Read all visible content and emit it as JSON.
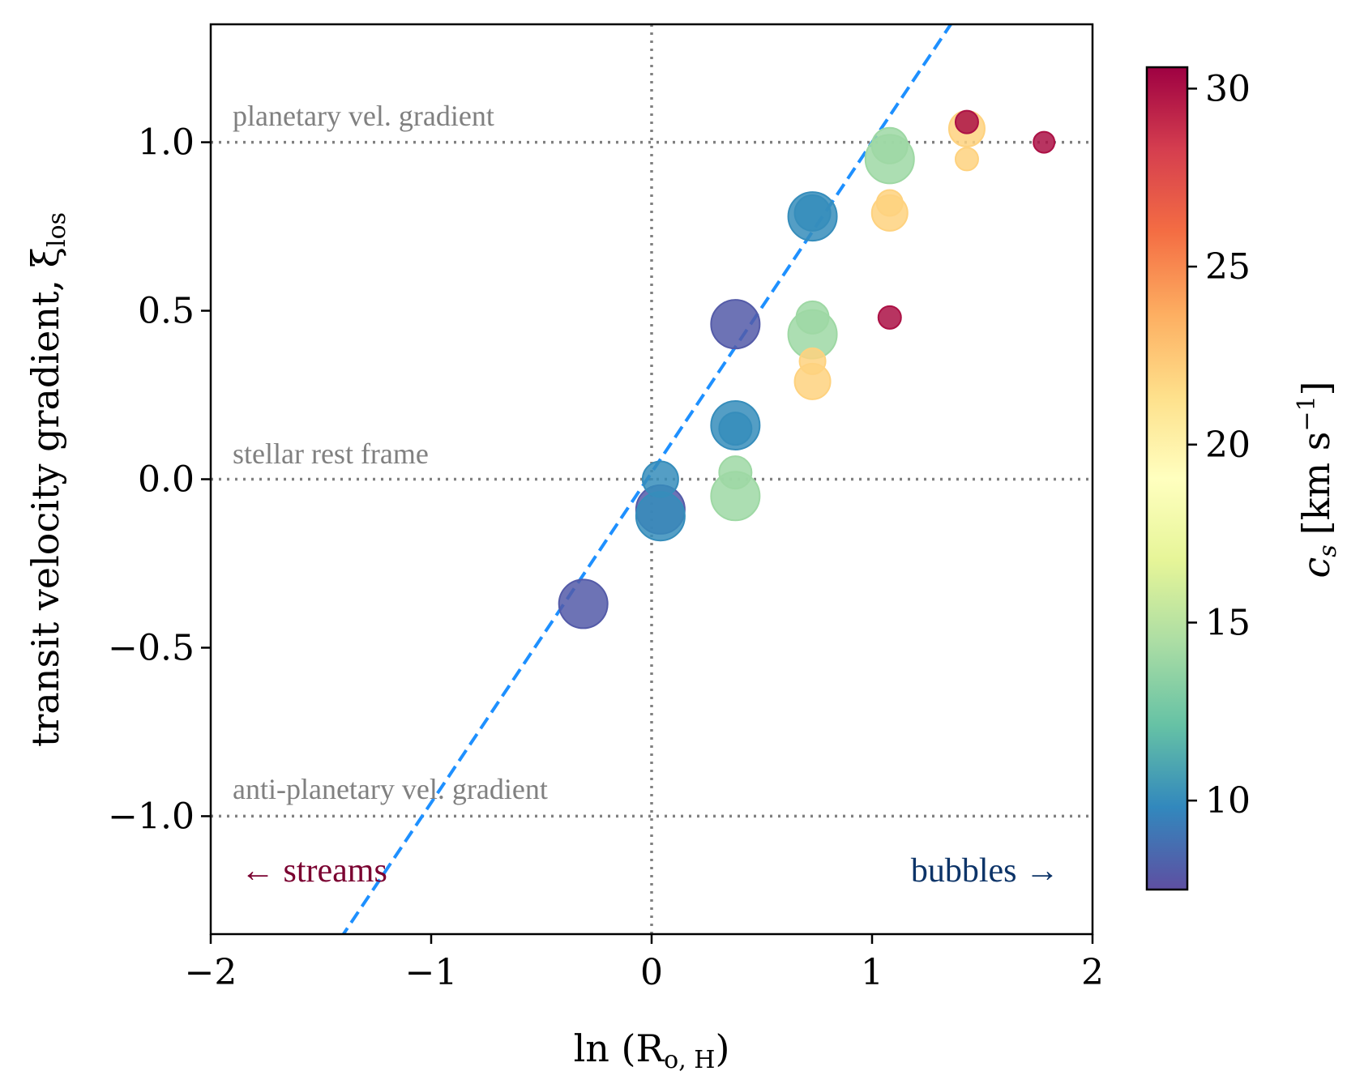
{
  "chart_data": {
    "type": "scatter",
    "xlabel": "ln (R",
    "xlabel_sub": "o, H",
    "xlabel_close": ")",
    "ylabel": "transit velocity gradient, ξ",
    "ylabel_sub": "los",
    "xlim": [
      -2,
      2
    ],
    "ylim": [
      -1.35,
      1.35
    ],
    "xticks": [
      -2,
      -1,
      0,
      1,
      2
    ],
    "xtick_labels": [
      "−2",
      "−1",
      "0",
      "1",
      "2"
    ],
    "yticks": [
      -1.0,
      -0.5,
      0.0,
      0.5,
      1.0
    ],
    "ytick_labels": [
      "−1.0",
      "−0.5",
      "0.0",
      "0.5",
      "1.0"
    ],
    "reference_lines": [
      {
        "y": 1.0,
        "label": "planetary vel. gradient"
      },
      {
        "y": 0.0,
        "label": "stellar rest frame"
      },
      {
        "y": -1.0,
        "label": "anti-planetary vel. gradient"
      }
    ],
    "vertical_reference": {
      "x": 0
    },
    "fit_line": {
      "slope": 0.98,
      "intercept": 0.02,
      "style": "dashed",
      "color": "#1e90ff"
    },
    "annotations": {
      "left": {
        "text": "← streams",
        "color": "#7a0030"
      },
      "right": {
        "text": "bubbles →",
        "color": "#0d3468"
      }
    },
    "colorbar": {
      "label": "c",
      "label_sub": "s",
      "label_units": "[km s",
      "label_exp": "−1",
      "label_close": "]",
      "range": [
        7.5,
        30.6
      ],
      "ticks": [
        10,
        15,
        20,
        25,
        30
      ],
      "tick_labels": [
        "10",
        "15",
        "20",
        "25",
        "30"
      ]
    },
    "points": [
      {
        "x": -0.31,
        "y": -0.37,
        "cs": 8,
        "size": 30
      },
      {
        "x": 0.04,
        "y": -0.09,
        "cs": 8,
        "size": 30
      },
      {
        "x": 0.04,
        "y": 0.0,
        "cs": 10,
        "size": 22
      },
      {
        "x": 0.04,
        "y": -0.11,
        "cs": 10,
        "size": 30
      },
      {
        "x": 0.38,
        "y": 0.46,
        "cs": 8,
        "size": 30
      },
      {
        "x": 0.38,
        "y": 0.16,
        "cs": 10,
        "size": 30
      },
      {
        "x": 0.38,
        "y": 0.15,
        "cs": 10,
        "size": 20
      },
      {
        "x": 0.38,
        "y": 0.02,
        "cs": 14,
        "size": 20
      },
      {
        "x": 0.38,
        "y": -0.05,
        "cs": 14,
        "size": 30
      },
      {
        "x": 0.73,
        "y": 0.78,
        "cs": 10,
        "size": 30
      },
      {
        "x": 0.73,
        "y": 0.79,
        "cs": 10,
        "size": 22
      },
      {
        "x": 0.73,
        "y": 0.48,
        "cs": 14,
        "size": 20
      },
      {
        "x": 0.73,
        "y": 0.43,
        "cs": 14,
        "size": 30
      },
      {
        "x": 0.73,
        "y": 0.35,
        "cs": 22,
        "size": 16
      },
      {
        "x": 0.73,
        "y": 0.29,
        "cs": 22,
        "size": 22
      },
      {
        "x": 1.08,
        "y": 0.99,
        "cs": 14,
        "size": 22
      },
      {
        "x": 1.08,
        "y": 0.95,
        "cs": 14,
        "size": 30
      },
      {
        "x": 1.08,
        "y": 0.82,
        "cs": 22,
        "size": 16
      },
      {
        "x": 1.08,
        "y": 0.79,
        "cs": 22,
        "size": 22
      },
      {
        "x": 1.08,
        "y": 0.48,
        "cs": 30,
        "size": 14
      },
      {
        "x": 1.43,
        "y": 1.04,
        "cs": 22,
        "size": 22
      },
      {
        "x": 1.43,
        "y": 0.95,
        "cs": 22,
        "size": 14
      },
      {
        "x": 1.43,
        "y": 1.06,
        "cs": 30,
        "size": 14
      },
      {
        "x": 1.78,
        "y": 1.0,
        "cs": 30,
        "size": 13
      }
    ]
  }
}
